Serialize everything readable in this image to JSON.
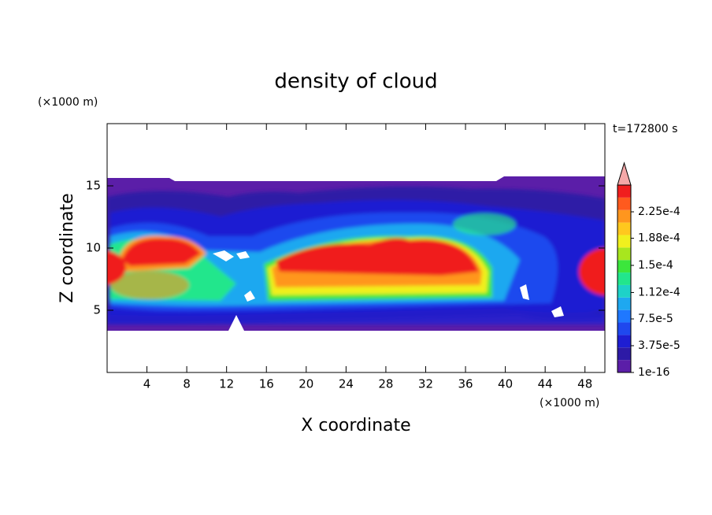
{
  "chart_data": {
    "type": "contour",
    "title": "density of cloud",
    "x_label": "X coordinate",
    "y_label": "Z coordinate",
    "x_unit": "(×1000 m)",
    "y_unit": "(×1000 m)",
    "annotation": "t=172800 s",
    "xlim": [
      0,
      50
    ],
    "ylim": [
      0,
      20
    ],
    "xticks": [
      4,
      8,
      12,
      16,
      20,
      24,
      28,
      32,
      36,
      40,
      44,
      48
    ],
    "yticks": [
      5,
      10,
      15
    ],
    "colorbar": {
      "clim": [
        1e-16,
        0.0002625
      ],
      "colors": [
        "#5b1ea8",
        "#2d1aa6",
        "#1e1ed2",
        "#1f48ee",
        "#1f78ff",
        "#1ea8f0",
        "#1ed2c8",
        "#22e68c",
        "#3ce63c",
        "#a8e61e",
        "#f0f01e",
        "#ffc81e",
        "#ff961e",
        "#ff5a1e",
        "#f01e1e"
      ],
      "extend_color": "#f4a8a8",
      "ticks": [
        {
          "value": 1e-16,
          "label": "1e-16"
        },
        {
          "value": 3.75e-05,
          "label": "3.75e-5"
        },
        {
          "value": 7.5e-05,
          "label": "7.5e-5"
        },
        {
          "value": 0.000112,
          "label": "1.12e-4"
        },
        {
          "value": 0.00015,
          "label": "1.5e-4"
        },
        {
          "value": 0.000188,
          "label": "1.88e-4"
        },
        {
          "value": 0.000225,
          "label": "2.25e-4"
        }
      ]
    }
  }
}
